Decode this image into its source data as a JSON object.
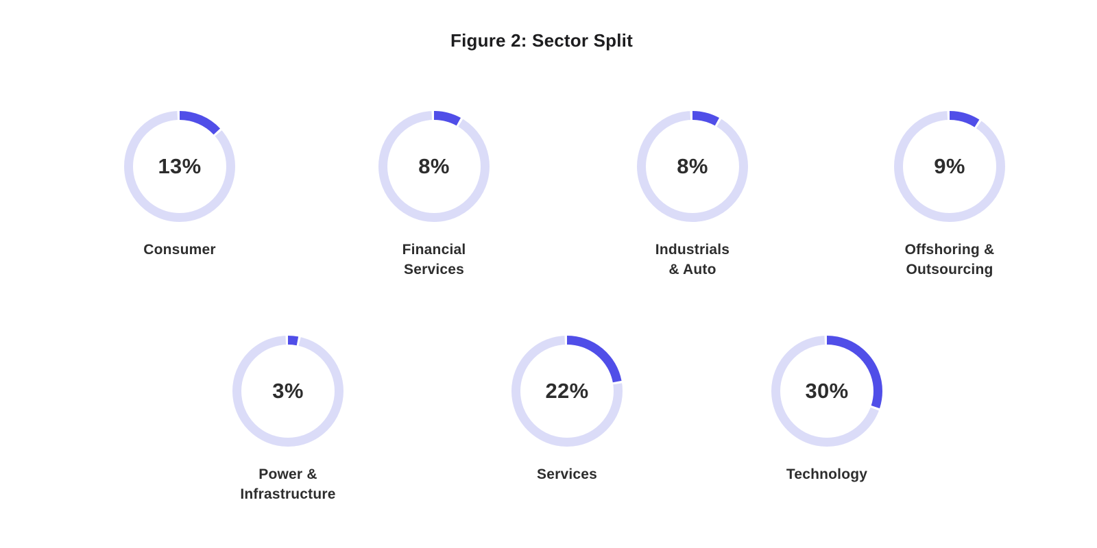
{
  "title": "Figure 2: Sector Split",
  "chart_data": {
    "type": "donut",
    "title": "Figure 2: Sector Split",
    "unit": "%",
    "legend_position": "none",
    "arc_start": "top",
    "arc_direction": "clockwise",
    "series": [
      {
        "label": "Consumer",
        "label_lines": [
          "Consumer"
        ],
        "value": 13,
        "value_label": "13%"
      },
      {
        "label": "Financial Services",
        "label_lines": [
          "Financial",
          "Services"
        ],
        "value": 8,
        "value_label": "8%"
      },
      {
        "label": "Industrials & Auto",
        "label_lines": [
          "Industrials",
          "& Auto"
        ],
        "value": 8,
        "value_label": "8%"
      },
      {
        "label": "Offshoring & Outsourcing",
        "label_lines": [
          "Offshoring &",
          "Outsourcing"
        ],
        "value": 9,
        "value_label": "9%"
      },
      {
        "label": "Power & Infrastructure",
        "label_lines": [
          "Power &",
          "Infrastructure"
        ],
        "value": 3,
        "value_label": "3%"
      },
      {
        "label": "Services",
        "label_lines": [
          "Services"
        ],
        "value": 22,
        "value_label": "22%"
      },
      {
        "label": "Technology",
        "label_lines": [
          "Technology"
        ],
        "value": 30,
        "value_label": "30%"
      }
    ],
    "colors": {
      "arc": "#504EE8",
      "track": "#DBDCF8",
      "gap": "#FFFFFF",
      "text": "#2D2D2D",
      "background": "#FFFFFF"
    }
  }
}
